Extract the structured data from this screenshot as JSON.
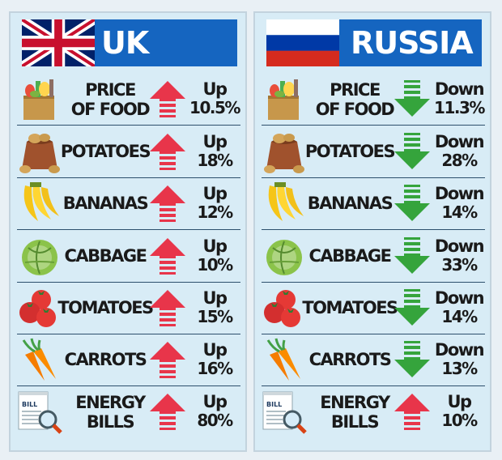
{
  "panels": {
    "uk": {
      "country": "UK",
      "rows": [
        {
          "name": "PRICE OF FOOD",
          "lines": [
            "PRICE",
            "OF FOOD"
          ],
          "icon": "grocery-bag-icon",
          "direction": "Up",
          "percent": "10.5%"
        },
        {
          "name": "POTATOES",
          "icon": "potatoes-sack-icon",
          "direction": "Up",
          "percent": "18%"
        },
        {
          "name": "BANANAS",
          "icon": "bananas-icon",
          "direction": "Up",
          "percent": "12%"
        },
        {
          "name": "CABBAGE",
          "icon": "cabbage-icon",
          "direction": "Up",
          "percent": "10%"
        },
        {
          "name": "TOMATOES",
          "icon": "tomatoes-icon",
          "direction": "Up",
          "percent": "15%"
        },
        {
          "name": "CARROTS",
          "icon": "carrots-icon",
          "direction": "Up",
          "percent": "16%"
        },
        {
          "name": "ENERGY BILLS",
          "lines": [
            "ENERGY",
            "BILLS"
          ],
          "icon": "energy-bill-icon",
          "bill_label": "BILL",
          "direction": "Up",
          "percent": "80%"
        }
      ]
    },
    "russia": {
      "country": "RUSSIA",
      "rows": [
        {
          "name": "PRICE OF FOOD",
          "lines": [
            "PRICE",
            "OF FOOD"
          ],
          "icon": "grocery-bag-icon",
          "direction": "Down",
          "percent": "11.3%"
        },
        {
          "name": "POTATOES",
          "icon": "potatoes-sack-icon",
          "direction": "Down",
          "percent": "28%"
        },
        {
          "name": "BANANAS",
          "icon": "bananas-icon",
          "direction": "Down",
          "percent": "14%"
        },
        {
          "name": "CABBAGE",
          "icon": "cabbage-icon",
          "direction": "Down",
          "percent": "33%"
        },
        {
          "name": "TOMATOES",
          "icon": "tomatoes-icon",
          "direction": "Down",
          "percent": "14%"
        },
        {
          "name": "CARROTS",
          "icon": "carrots-icon",
          "direction": "Down",
          "percent": "13%"
        },
        {
          "name": "ENERGY BILLS",
          "lines": [
            "ENERGY",
            "BILLS"
          ],
          "icon": "energy-bill-icon",
          "bill_label": "BILL",
          "direction": "Up",
          "percent": "10%"
        }
      ]
    }
  },
  "colors": {
    "up": "#e8354a",
    "down": "#35a43c",
    "header": "#1565c0",
    "panel": "#d8ecf6",
    "divider": "#2d4f6c"
  }
}
